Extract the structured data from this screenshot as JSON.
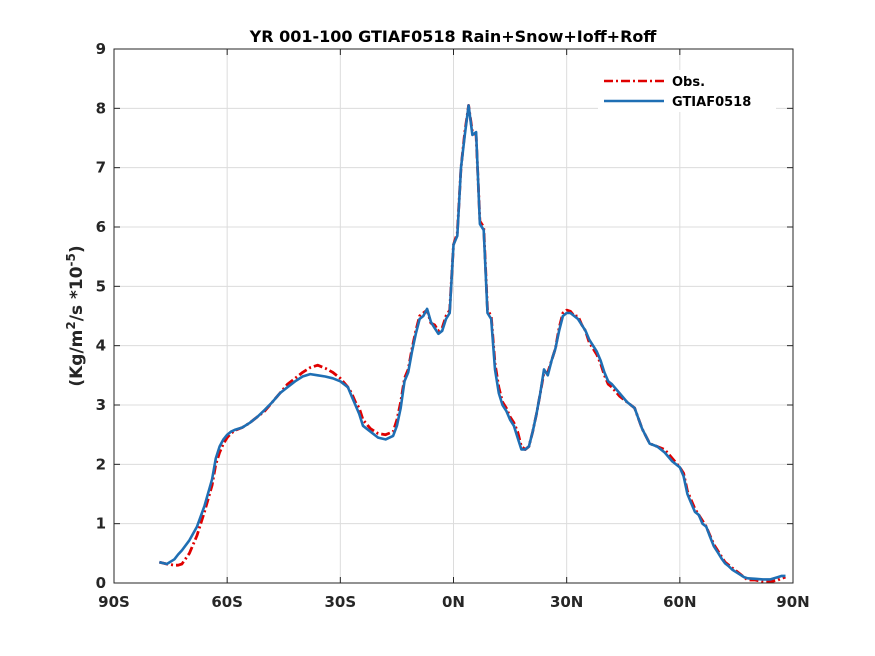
{
  "chart_data": {
    "type": "line",
    "title": "YR 001-100 GTIAF0518  Rain+Snow+Ioff+Roff",
    "xlabel": "",
    "ylabel": {
      "main": "(Kg/m",
      "sup1": "2",
      "mid": "/s *10",
      "sup2": "-5",
      "end": ")"
    },
    "xlim": [
      -90,
      90
    ],
    "ylim": [
      0,
      9
    ],
    "x_ticks": [
      -90,
      -60,
      -30,
      0,
      30,
      60,
      90
    ],
    "x_tick_labels": [
      "90S",
      "60S",
      "30S",
      "0N",
      "30N",
      "60N",
      "90N"
    ],
    "y_ticks": [
      0,
      1,
      2,
      3,
      4,
      5,
      6,
      7,
      8,
      9
    ],
    "y_tick_labels": [
      "0",
      "1",
      "2",
      "3",
      "4",
      "5",
      "6",
      "7",
      "8",
      "9"
    ],
    "grid": true,
    "legend_position": "top-right",
    "series": [
      {
        "name": "Obs.",
        "color": "#e00000",
        "dash": "dashdot",
        "x": [
          -78,
          -76,
          -74,
          -73,
          -72,
          -70,
          -68,
          -66,
          -64,
          -63,
          -62,
          -61,
          -60,
          -59,
          -58,
          -56,
          -54,
          -52,
          -50,
          -48,
          -46,
          -44,
          -42,
          -40,
          -38,
          -36,
          -34,
          -32,
          -30,
          -28,
          -27,
          -26,
          -25,
          -24,
          -22,
          -20,
          -18,
          -16,
          -15,
          -14,
          -13,
          -12,
          -11,
          -10,
          -9,
          -8,
          -7,
          -6,
          -5,
          -4,
          -3,
          -2,
          -1,
          0,
          1,
          2,
          3,
          4,
          5,
          6,
          7,
          8,
          9,
          10,
          11,
          12,
          13,
          14,
          15,
          16,
          17,
          18,
          19,
          20,
          21,
          22,
          23,
          24,
          25,
          26,
          27,
          28,
          29,
          30,
          31,
          32,
          33,
          34,
          35,
          36,
          37,
          38,
          39,
          40,
          41,
          42,
          44,
          46,
          48,
          50,
          52,
          54,
          56,
          58,
          60,
          61,
          62,
          63,
          64,
          65,
          66,
          67,
          68,
          69,
          70,
          71,
          72,
          73,
          74,
          75,
          76,
          77,
          78,
          80,
          82,
          84,
          86,
          87,
          88
        ],
        "y": [
          0.35,
          0.32,
          0.3,
          0.3,
          0.32,
          0.5,
          0.8,
          1.2,
          1.65,
          2.0,
          2.2,
          2.35,
          2.45,
          2.52,
          2.57,
          2.62,
          2.7,
          2.8,
          2.9,
          3.05,
          3.2,
          3.35,
          3.45,
          3.55,
          3.63,
          3.67,
          3.62,
          3.55,
          3.45,
          3.3,
          3.2,
          3.05,
          2.95,
          2.75,
          2.6,
          2.52,
          2.5,
          2.55,
          2.75,
          3.05,
          3.45,
          3.6,
          3.95,
          4.25,
          4.5,
          4.55,
          4.6,
          4.38,
          4.35,
          4.25,
          4.3,
          4.5,
          4.6,
          5.7,
          5.9,
          7.0,
          7.6,
          8.05,
          7.6,
          7.55,
          6.1,
          6.0,
          4.6,
          4.5,
          3.7,
          3.3,
          3.05,
          2.95,
          2.8,
          2.7,
          2.55,
          2.3,
          2.25,
          2.3,
          2.55,
          2.85,
          3.2,
          3.55,
          3.55,
          3.75,
          3.95,
          4.3,
          4.55,
          4.6,
          4.58,
          4.5,
          4.5,
          4.35,
          4.25,
          4.05,
          3.95,
          3.85,
          3.7,
          3.5,
          3.35,
          3.3,
          3.15,
          3.05,
          2.95,
          2.6,
          2.35,
          2.3,
          2.25,
          2.1,
          1.95,
          1.85,
          1.55,
          1.4,
          1.25,
          1.15,
          1.05,
          0.95,
          0.8,
          0.65,
          0.55,
          0.45,
          0.35,
          0.3,
          0.25,
          0.2,
          0.15,
          0.1,
          0.05,
          0.05,
          0.02,
          0.02,
          0.05,
          0.08,
          0.1
        ]
      },
      {
        "name": "GTIAF0518",
        "color": "#1f6fb4",
        "dash": "solid",
        "x": [
          -78,
          -76,
          -74,
          -73,
          -72,
          -70,
          -68,
          -66,
          -64,
          -63,
          -62,
          -61,
          -60,
          -59,
          -58,
          -56,
          -54,
          -52,
          -50,
          -48,
          -46,
          -44,
          -42,
          -40,
          -38,
          -36,
          -34,
          -32,
          -30,
          -28,
          -27,
          -26,
          -25,
          -24,
          -22,
          -20,
          -18,
          -16,
          -15,
          -14,
          -13,
          -12,
          -11,
          -10,
          -9,
          -8,
          -7,
          -6,
          -5,
          -4,
          -3,
          -2,
          -1,
          0,
          1,
          2,
          3,
          4,
          5,
          6,
          7,
          8,
          9,
          10,
          11,
          12,
          13,
          14,
          15,
          16,
          17,
          18,
          19,
          20,
          21,
          22,
          23,
          24,
          25,
          26,
          27,
          28,
          29,
          30,
          31,
          32,
          33,
          34,
          35,
          36,
          37,
          38,
          39,
          40,
          41,
          42,
          44,
          46,
          48,
          50,
          52,
          54,
          56,
          58,
          60,
          61,
          62,
          63,
          64,
          65,
          66,
          67,
          68,
          69,
          70,
          71,
          72,
          73,
          74,
          75,
          76,
          77,
          78,
          80,
          82,
          84,
          86,
          87,
          88
        ],
        "y": [
          0.35,
          0.32,
          0.4,
          0.48,
          0.55,
          0.72,
          0.95,
          1.3,
          1.75,
          2.1,
          2.3,
          2.42,
          2.5,
          2.55,
          2.58,
          2.62,
          2.7,
          2.8,
          2.92,
          3.05,
          3.2,
          3.3,
          3.4,
          3.48,
          3.52,
          3.5,
          3.48,
          3.45,
          3.4,
          3.3,
          3.15,
          3.0,
          2.85,
          2.65,
          2.55,
          2.45,
          2.42,
          2.48,
          2.65,
          2.95,
          3.4,
          3.55,
          3.9,
          4.2,
          4.45,
          4.5,
          4.62,
          4.4,
          4.3,
          4.2,
          4.25,
          4.45,
          4.55,
          5.7,
          5.85,
          7.0,
          7.55,
          8.05,
          7.55,
          7.6,
          6.05,
          5.95,
          4.55,
          4.45,
          3.6,
          3.2,
          3.0,
          2.9,
          2.75,
          2.65,
          2.45,
          2.25,
          2.25,
          2.3,
          2.55,
          2.85,
          3.2,
          3.6,
          3.5,
          3.75,
          3.95,
          4.25,
          4.5,
          4.55,
          4.55,
          4.5,
          4.45,
          4.35,
          4.25,
          4.1,
          4.0,
          3.9,
          3.75,
          3.55,
          3.4,
          3.35,
          3.2,
          3.05,
          2.95,
          2.6,
          2.35,
          2.3,
          2.2,
          2.05,
          1.95,
          1.8,
          1.5,
          1.35,
          1.2,
          1.15,
          1.0,
          0.95,
          0.78,
          0.62,
          0.52,
          0.42,
          0.33,
          0.28,
          0.22,
          0.18,
          0.14,
          0.1,
          0.08,
          0.07,
          0.06,
          0.06,
          0.1,
          0.12,
          0.12
        ]
      }
    ]
  }
}
